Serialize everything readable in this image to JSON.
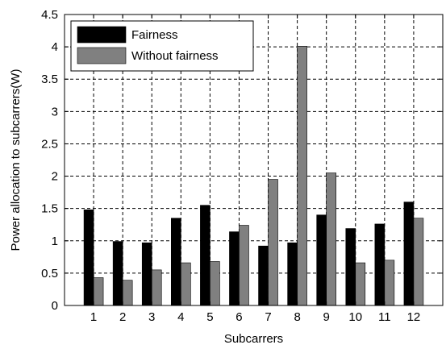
{
  "chart_data": {
    "type": "bar",
    "title": "",
    "xlabel": "Subcarrers",
    "ylabel": "Power allocation to subcarrers(W)",
    "categories": [
      "1",
      "2",
      "3",
      "4",
      "5",
      "6",
      "7",
      "8",
      "9",
      "10",
      "11",
      "12"
    ],
    "series": [
      {
        "name": "Fairness",
        "color": "#000000",
        "values": [
          1.48,
          0.99,
          0.97,
          1.35,
          1.55,
          1.14,
          0.92,
          0.97,
          1.4,
          1.19,
          1.26,
          1.6
        ]
      },
      {
        "name": "Without fairness",
        "color": "#808080",
        "values": [
          0.43,
          0.39,
          0.55,
          0.66,
          0.68,
          1.24,
          1.95,
          4.01,
          2.05,
          0.66,
          0.7,
          1.35
        ]
      }
    ],
    "ylim": [
      0,
      4.5
    ],
    "yticks": [
      "0",
      "0.5",
      "1",
      "1.5",
      "2",
      "2.5",
      "3",
      "3.5",
      "4",
      "4.5"
    ],
    "grid": true,
    "grid_style": "dashed",
    "legend_position": "top-left"
  }
}
